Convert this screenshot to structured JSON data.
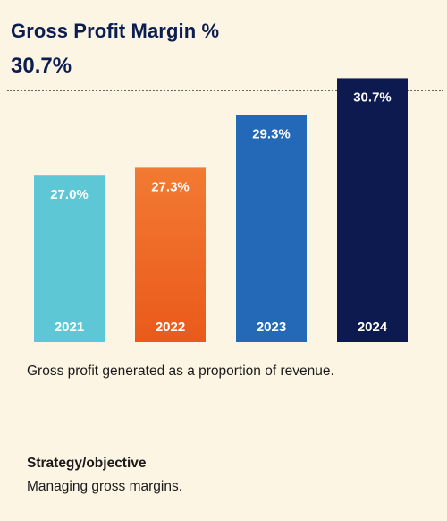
{
  "header": {
    "title": "Gross Profit Margin %",
    "value": "30.7%"
  },
  "chart_data": {
    "type": "bar",
    "categories": [
      "2021",
      "2022",
      "2023",
      "2024"
    ],
    "values": [
      27.0,
      27.3,
      29.3,
      30.7
    ],
    "value_labels": [
      "27.0%",
      "27.3%",
      "29.3%",
      "30.7%"
    ],
    "colors": [
      "#5dc7d6",
      "#ea5a1a",
      "#2369b7",
      "#0c1a4f"
    ],
    "gradient_top_colors": [
      "#5dc7d6",
      "#f27a32",
      "#2369b7",
      "#0c1a4f"
    ],
    "title": "",
    "xlabel": "",
    "ylabel": "",
    "grid": false,
    "legend": "none"
  },
  "description": "Gross profit generated as a proportion of revenue.",
  "strategy": {
    "heading": "Strategy/objective",
    "text": "Managing gross margins."
  }
}
